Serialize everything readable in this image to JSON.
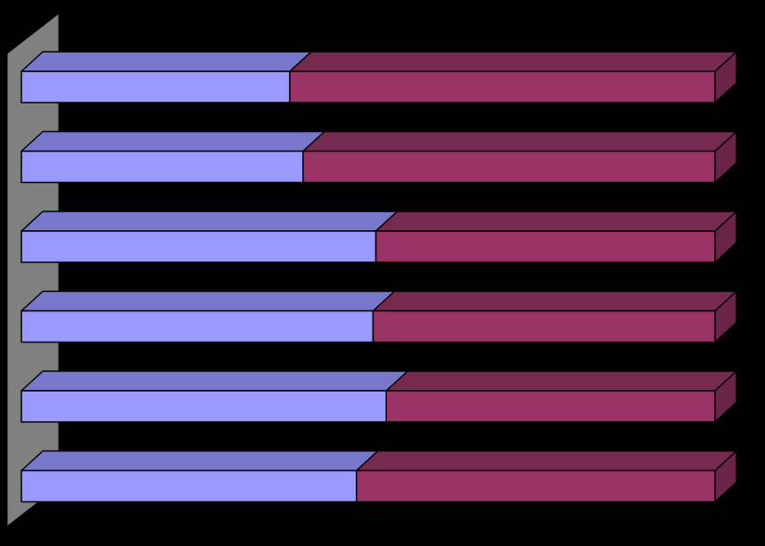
{
  "chart_data": {
    "type": "bar",
    "orientation": "horizontal",
    "stacking": "percent",
    "style": "3d",
    "categories": [
      "",
      "",
      "",
      "",
      "",
      ""
    ],
    "series": [
      {
        "values": [
          38.7,
          40.6,
          51.1,
          50.7,
          52.6,
          48.3
        ]
      },
      {
        "values": [
          61.3,
          59.4,
          48.9,
          49.3,
          47.4,
          51.7
        ]
      }
    ],
    "xlim": [
      0,
      100
    ],
    "grid": false,
    "legend": "none",
    "colors": {
      "background": "#000000",
      "series_front": [
        "#9999ff",
        "#993366"
      ],
      "series_top": [
        "#7777cc",
        "#772a50"
      ],
      "series_side": [
        "#6666aa",
        "#6a2447"
      ],
      "wall": "#808080",
      "outline": "#000000"
    }
  }
}
